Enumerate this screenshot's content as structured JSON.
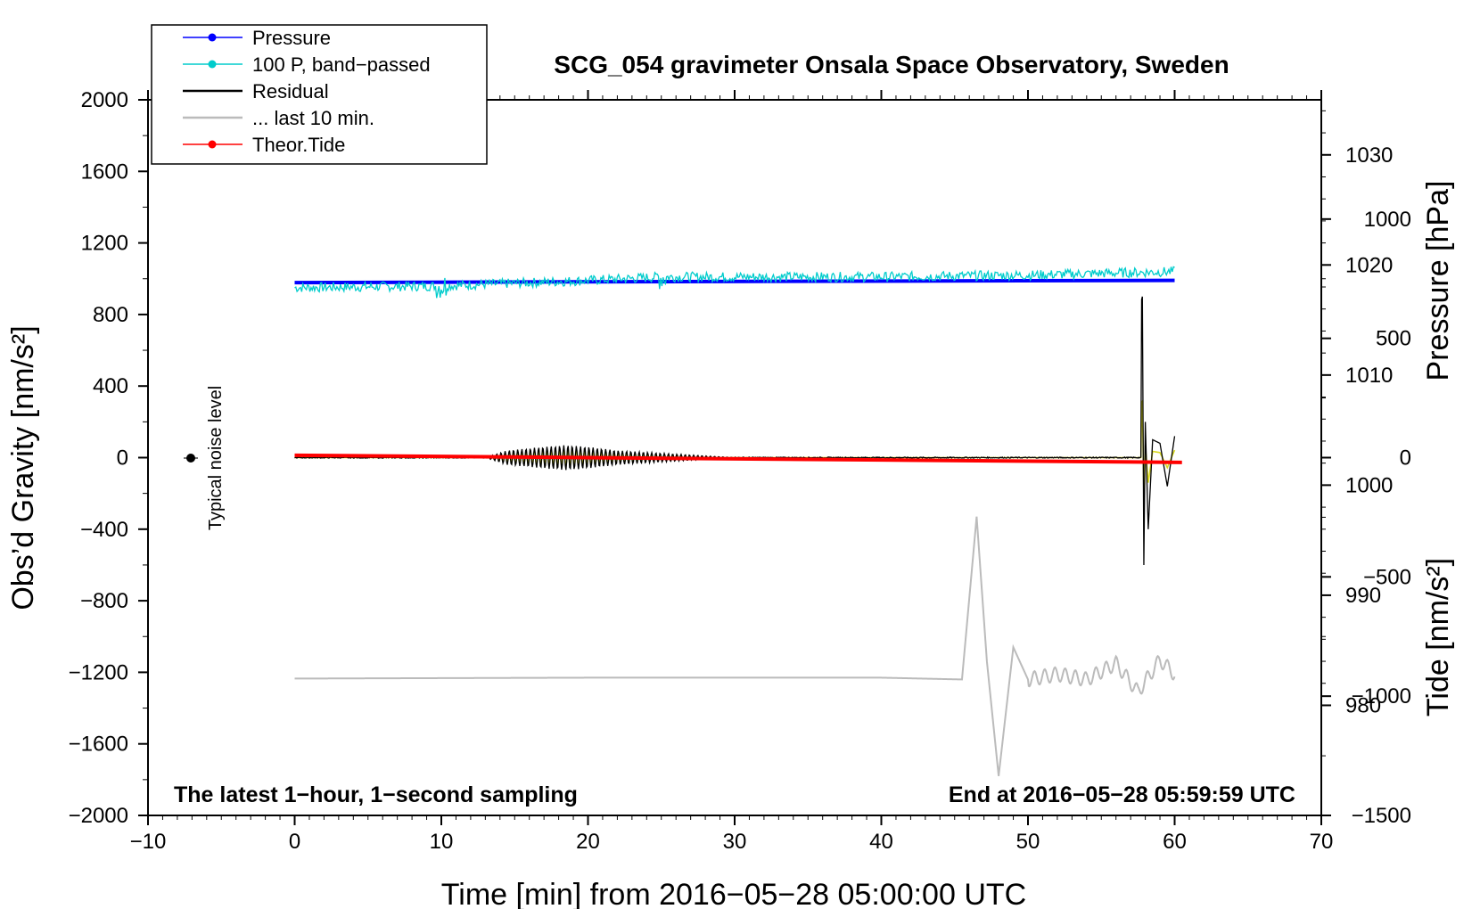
{
  "chart_data": {
    "type": "line",
    "title": "SCG_054 gravimeter Onsala Space Observatory, Sweden",
    "xlabel": "Time [min] from 2016−05−28 05:00:00 UTC",
    "ylabel_left": "Obs’d Gravity [nm/s²]",
    "ylabel_right_pressure": "Pressure [hPa]",
    "ylabel_right_tide": "Tide [nm/s²]",
    "xlim": [
      -10,
      70
    ],
    "ylim": [
      -2000,
      2000
    ],
    "pressure_lim": [
      970,
      1035
    ],
    "tide_lim": [
      -1500,
      1500
    ],
    "x_ticks": [
      "−10",
      "0",
      "10",
      "20",
      "30",
      "40",
      "50",
      "60",
      "70"
    ],
    "y_ticks": [
      "2000",
      "1600",
      "1200",
      "800",
      "400",
      "0",
      "−400",
      "−800",
      "−1200",
      "−1600",
      "−2000"
    ],
    "pressure_ticks": [
      "1030",
      "1020",
      "1010",
      "1000",
      "990",
      "980"
    ],
    "tide_ticks": [
      "1000",
      "500",
      "0",
      "−500",
      "−1000",
      "−1500"
    ],
    "annotation_left": "The latest 1−hour, 1−second sampling",
    "annotation_right": "End at 2016−05−28 05:59:59 UTC",
    "noise_label": "Typical noise level",
    "colors": {
      "pressure": "#0000ff",
      "bandpassed": "#00cccc",
      "residual": "#000000",
      "last10": "#bbbbbb",
      "tide": "#ff0000",
      "residual_filtered": "#d8d820"
    },
    "legend": [
      {
        "name": "Pressure",
        "color": "#0000ff",
        "marker": true
      },
      {
        "name": "100 P, band−passed",
        "color": "#00cccc",
        "marker": true
      },
      {
        "name": "Residual",
        "color": "#000000",
        "marker": false
      },
      {
        "name": "... last 10 min.",
        "color": "#bbbbbb",
        "marker": false
      },
      {
        "name": "Theor.Tide",
        "color": "#ff0000",
        "marker": true
      }
    ],
    "series": [
      {
        "name": "Pressure",
        "axis": "pressure",
        "x": [
          0,
          60
        ],
        "values": [
          1018.4,
          1018.6
        ]
      },
      {
        "name": "100 P, band−passed",
        "axis": "gravity",
        "x": [
          0,
          10,
          20,
          25,
          30,
          40,
          50,
          60
        ],
        "values": [
          950,
          960,
          990,
          1010,
          1010,
          1010,
          1020,
          1040
        ]
      },
      {
        "name": "Residual",
        "axis": "gravity",
        "x": [
          0,
          13,
          14.5,
          17,
          18.5,
          20,
          22,
          24,
          26,
          28,
          30,
          40,
          55,
          57.8,
          57.9,
          58,
          58.2,
          58.5,
          59,
          59.5,
          60
        ],
        "values": [
          0,
          0,
          40,
          60,
          70,
          60,
          40,
          30,
          20,
          10,
          0,
          0,
          0,
          900,
          -600,
          200,
          -400,
          100,
          80,
          -160,
          120
        ]
      },
      {
        "name": "... last 10 min.",
        "axis": "gravity",
        "x": [
          0,
          20,
          31.5,
          40,
          45.5,
          46.5,
          47.2,
          48,
          49,
          50,
          52,
          54,
          56,
          57.5,
          59,
          60
        ],
        "values": [
          -1235,
          -1230,
          -1230,
          -1230,
          -1240,
          -330,
          -1140,
          -1780,
          -1060,
          -1240,
          -1210,
          -1240,
          -1150,
          -1310,
          -1130,
          -1210
        ]
      },
      {
        "name": "Theor.Tide",
        "axis": "tide",
        "x": [
          0,
          20,
          40,
          60.5
        ],
        "values": [
          10,
          0,
          -10,
          -20
        ]
      }
    ],
    "grid": false,
    "legend_position": "top-left"
  }
}
